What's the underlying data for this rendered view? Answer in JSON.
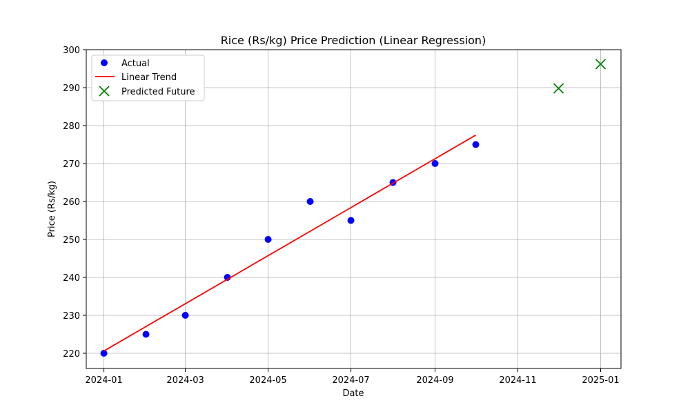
{
  "chart_data": {
    "type": "scatter",
    "title": "Rice (Rs/kg) Price Prediction (Linear Regression)",
    "xlabel": "Date",
    "ylabel": "Price (Rs/kg)",
    "x_ticks": [
      "2024-01",
      "2024-03",
      "2024-05",
      "2024-07",
      "2024-09",
      "2024-11",
      "2025-01"
    ],
    "y_ticks": [
      220,
      230,
      240,
      250,
      260,
      270,
      280,
      290,
      300
    ],
    "xlim": [
      "2023-12-19",
      "2025-01-16"
    ],
    "ylim": [
      216,
      300
    ],
    "grid": true,
    "legend_position": "top-left",
    "series": [
      {
        "name": "Actual",
        "kind": "scatter",
        "marker": "circle",
        "color": "#0000ff",
        "points": [
          {
            "x": "2024-01-01",
            "y": 220
          },
          {
            "x": "2024-02-01",
            "y": 225
          },
          {
            "x": "2024-03-01",
            "y": 230
          },
          {
            "x": "2024-04-01",
            "y": 240
          },
          {
            "x": "2024-05-01",
            "y": 250
          },
          {
            "x": "2024-06-01",
            "y": 260
          },
          {
            "x": "2024-07-01",
            "y": 255
          },
          {
            "x": "2024-08-01",
            "y": 265
          },
          {
            "x": "2024-09-01",
            "y": 270
          },
          {
            "x": "2024-10-01",
            "y": 275
          }
        ]
      },
      {
        "name": "Linear Trend",
        "kind": "line",
        "color": "#ff0000",
        "points": [
          {
            "x": "2024-01-01",
            "y": 220.6
          },
          {
            "x": "2024-10-01",
            "y": 277.5
          }
        ]
      },
      {
        "name": "Predicted Future",
        "kind": "scatter",
        "marker": "x",
        "color": "#008000",
        "points": [
          {
            "x": "2024-12-01",
            "y": 289.8
          },
          {
            "x": "2025-01-01",
            "y": 296.2
          }
        ]
      }
    ]
  }
}
